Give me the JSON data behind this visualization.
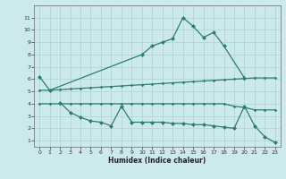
{
  "line1_x": [
    0,
    1,
    10,
    11,
    12,
    13,
    14,
    15,
    16,
    17,
    18,
    20
  ],
  "line1_y": [
    6.2,
    5.1,
    8.0,
    8.7,
    9.0,
    9.3,
    11.0,
    10.3,
    9.4,
    9.8,
    8.7,
    6.1
  ],
  "line2_x": [
    0,
    1,
    2,
    3,
    4,
    5,
    6,
    7,
    8,
    9,
    10,
    11,
    12,
    13,
    14,
    15,
    16,
    17,
    18,
    19,
    20,
    21,
    22,
    23
  ],
  "line2_y": [
    5.1,
    5.1,
    5.15,
    5.2,
    5.25,
    5.3,
    5.35,
    5.4,
    5.45,
    5.5,
    5.55,
    5.6,
    5.65,
    5.7,
    5.75,
    5.8,
    5.85,
    5.9,
    5.95,
    6.0,
    6.05,
    6.1,
    6.1,
    6.1
  ],
  "line3_x": [
    0,
    1,
    2,
    3,
    4,
    5,
    6,
    7,
    8,
    9,
    10,
    11,
    12,
    13,
    14,
    15,
    16,
    17,
    18,
    19,
    20,
    21,
    22,
    23
  ],
  "line3_y": [
    4.0,
    4.0,
    4.0,
    4.0,
    4.0,
    4.0,
    4.0,
    4.0,
    4.0,
    4.0,
    4.0,
    4.0,
    4.0,
    4.0,
    4.0,
    4.0,
    4.0,
    4.0,
    4.0,
    3.8,
    3.7,
    3.5,
    3.5,
    3.5
  ],
  "line4_x": [
    2,
    3,
    4,
    5,
    6,
    7,
    8,
    9,
    10,
    11,
    12,
    13,
    14,
    15,
    16,
    17,
    18,
    19,
    20,
    21,
    22,
    23
  ],
  "line4_y": [
    4.1,
    3.3,
    2.9,
    2.6,
    2.5,
    2.2,
    3.8,
    2.5,
    2.5,
    2.5,
    2.5,
    2.4,
    2.4,
    2.3,
    2.3,
    2.2,
    2.1,
    2.0,
    3.8,
    2.2,
    1.3,
    0.85
  ],
  "color": "#2d7d72",
  "bg_color": "#cce9eb",
  "grid_color": "#b0d0d4",
  "xlabel": "Humidex (Indice chaleur)",
  "ylim": [
    0.5,
    12
  ],
  "xlim": [
    -0.5,
    23.5
  ],
  "yticks": [
    1,
    2,
    3,
    4,
    5,
    6,
    7,
    8,
    9,
    10,
    11
  ],
  "xticks": [
    0,
    1,
    2,
    3,
    4,
    5,
    6,
    7,
    8,
    9,
    10,
    11,
    12,
    13,
    14,
    15,
    16,
    17,
    18,
    19,
    20,
    21,
    22,
    23
  ]
}
